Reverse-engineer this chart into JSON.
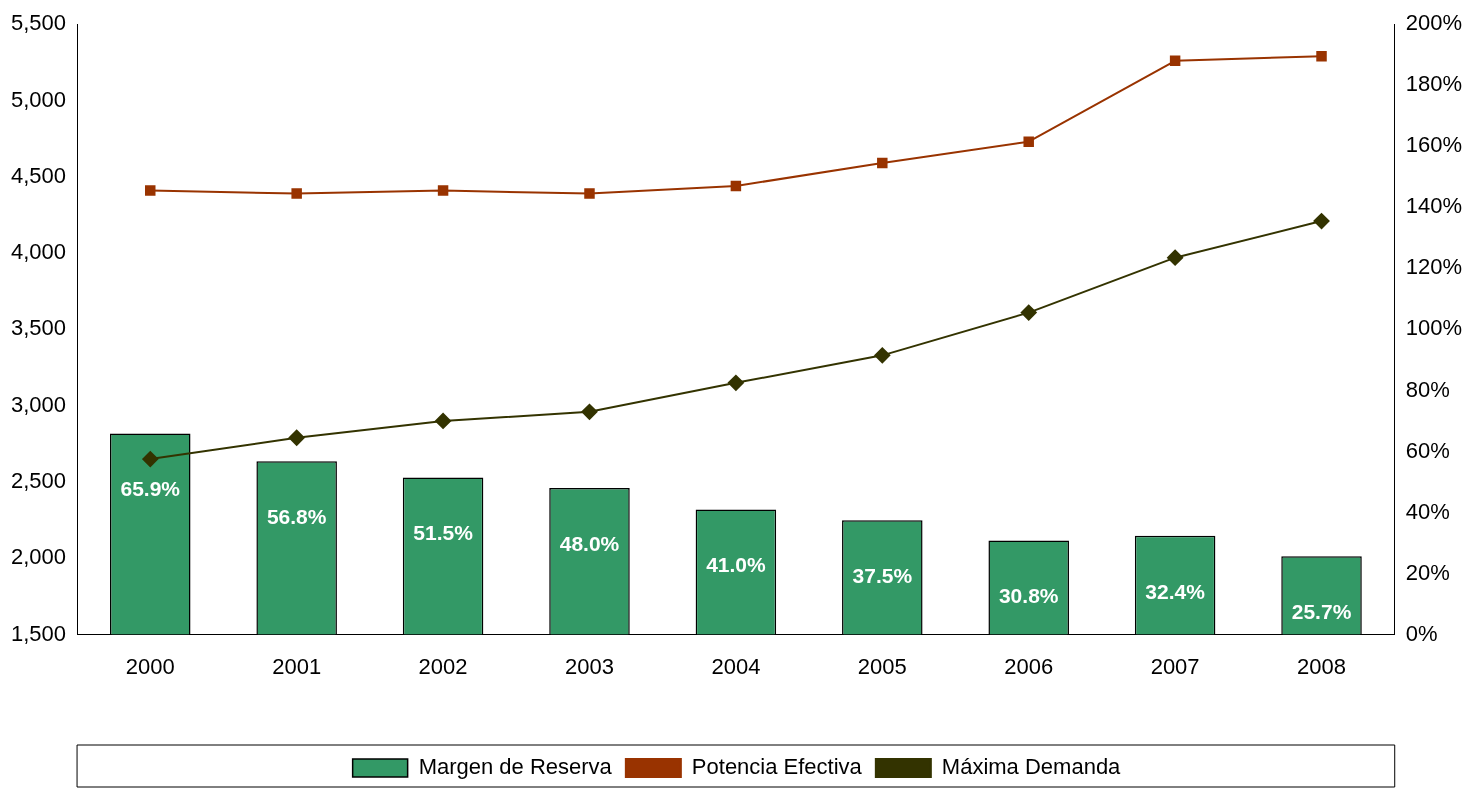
{
  "chart_data": {
    "type": "bar",
    "categories": [
      "2000",
      "2001",
      "2002",
      "2003",
      "2004",
      "2005",
      "2006",
      "2007",
      "2008"
    ],
    "series": [
      {
        "name": "Margen de Reserva",
        "axis": "y2",
        "color": "#339966",
        "values": [
          65.9,
          56.8,
          51.5,
          48.0,
          41.0,
          37.5,
          30.8,
          32.4,
          25.7
        ],
        "value_labels": [
          "65.9%",
          "56.8%",
          "51.5%",
          "48.0%",
          "41.0%",
          "37.5%",
          "30.8%",
          "32.4%",
          "25.7%"
        ]
      },
      {
        "name": "Potencia Efectiva",
        "type": "line",
        "color": "#993300",
        "marker": "square",
        "values": [
          4410,
          4390,
          4410,
          4390,
          4440,
          4590,
          4730,
          5260,
          5290
        ]
      },
      {
        "name": "Máxima Demanda",
        "type": "line",
        "color": "#333300",
        "marker": "diamond",
        "values": [
          2650,
          2790,
          2900,
          2960,
          3150,
          3330,
          3610,
          3970,
          4210
        ]
      }
    ],
    "ylim": [
      1500,
      5500
    ],
    "yticks": [
      {
        "value": 1500,
        "label": "1,500"
      },
      {
        "value": 2000,
        "label": "2,000"
      },
      {
        "value": 2500,
        "label": "2,500"
      },
      {
        "value": 3000,
        "label": "3,000"
      },
      {
        "value": 3500,
        "label": "3,500"
      },
      {
        "value": 4000,
        "label": "4,000"
      },
      {
        "value": 4500,
        "label": "4,500"
      },
      {
        "value": 5000,
        "label": "5,000"
      },
      {
        "value": 5500,
        "label": "5,500"
      }
    ],
    "y2lim": [
      0,
      200
    ],
    "y2ticks": [
      {
        "value": 0,
        "label": "0%"
      },
      {
        "value": 20,
        "label": "20%"
      },
      {
        "value": 40,
        "label": "40%"
      },
      {
        "value": 60,
        "label": "60%"
      },
      {
        "value": 80,
        "label": "80%"
      },
      {
        "value": 100,
        "label": "100%"
      },
      {
        "value": 120,
        "label": "120%"
      },
      {
        "value": 140,
        "label": "140%"
      },
      {
        "value": 160,
        "label": "160%"
      },
      {
        "value": 180,
        "label": "180%"
      },
      {
        "value": 200,
        "label": "200%"
      }
    ],
    "grid": false,
    "legend": "bottom"
  }
}
